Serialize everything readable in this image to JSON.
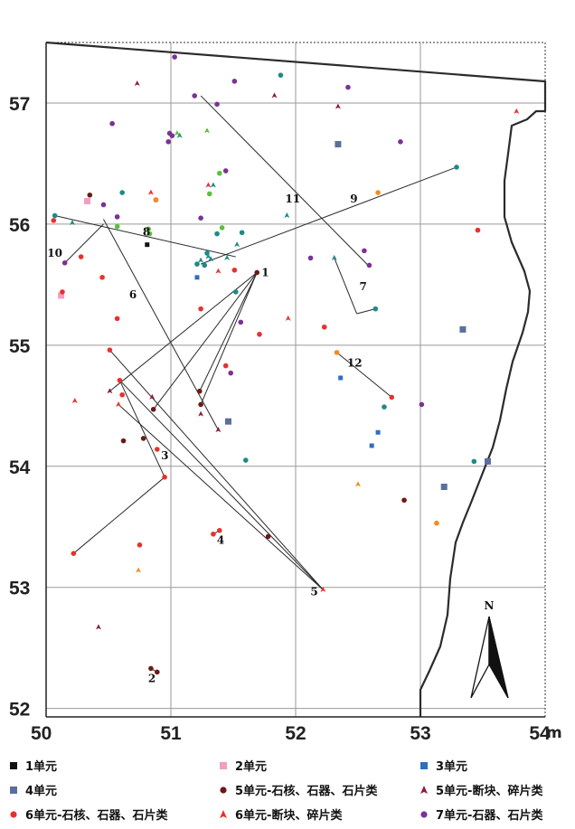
{
  "chart_data": {
    "type": "scatter",
    "x_ticks": [
      "50",
      "51",
      "52",
      "53",
      "54"
    ],
    "x_unit": "m",
    "y_ticks": [
      "52",
      "53",
      "54",
      "55",
      "56",
      "57"
    ],
    "xlim": [
      50,
      54
    ],
    "ylim": [
      51.93,
      57.5
    ],
    "grid": true,
    "north_arrow_label": "N",
    "series": [
      {
        "name": "1单元",
        "shape": "square",
        "color": "#111111",
        "small": true,
        "points": [
          [
            50.81,
            55.83
          ]
        ]
      },
      {
        "name": "2单元",
        "shape": "square",
        "color": "#f19ec2",
        "points": [
          [
            50.33,
            56.19
          ],
          [
            50.12,
            55.41
          ]
        ]
      },
      {
        "name": "3单元",
        "shape": "square",
        "color": "#2f6ebf",
        "small": true,
        "points": [
          [
            51.21,
            55.56
          ],
          [
            52.36,
            54.73
          ],
          [
            52.66,
            54.28
          ],
          [
            52.61,
            54.17
          ]
        ]
      },
      {
        "name": "4单元",
        "shape": "square",
        "color": "#5b6f9d",
        "points": [
          [
            52.34,
            56.66
          ],
          [
            53.34,
            55.13
          ],
          [
            51.46,
            54.37
          ],
          [
            53.54,
            54.04
          ],
          [
            53.19,
            53.83
          ]
        ]
      },
      {
        "name": "5单元-石核、石器、石片类",
        "shape": "circle",
        "color": "#6b1a14",
        "points": [
          [
            50.35,
            56.24
          ],
          [
            51.69,
            55.6
          ],
          [
            51.23,
            54.62
          ],
          [
            50.86,
            54.47
          ],
          [
            51.24,
            54.51
          ],
          [
            50.78,
            54.23
          ],
          [
            50.62,
            54.21
          ],
          [
            51.78,
            53.42
          ],
          [
            52.87,
            53.72
          ],
          [
            50.84,
            52.33
          ],
          [
            50.89,
            52.3
          ]
        ]
      },
      {
        "name": "5单元-断块、碎片类",
        "shape": "triangle",
        "color": "#8b1d3b",
        "points": [
          [
            50.73,
            57.16
          ],
          [
            51.83,
            57.06
          ],
          [
            52.34,
            56.97
          ],
          [
            51.38,
            54.3
          ],
          [
            50.51,
            54.62
          ],
          [
            51.24,
            54.43
          ],
          [
            50.85,
            54.57
          ],
          [
            50.42,
            52.67
          ]
        ]
      },
      {
        "name": "6单元-石核、石器、石片类",
        "shape": "circle",
        "color": "#e8312e",
        "points": [
          [
            50.06,
            56.03
          ],
          [
            50.28,
            55.73
          ],
          [
            50.45,
            55.56
          ],
          [
            50.13,
            55.44
          ],
          [
            50.57,
            55.22
          ],
          [
            50.51,
            54.96
          ],
          [
            50.59,
            54.71
          ],
          [
            50.61,
            54.59
          ],
          [
            50.89,
            54.14
          ],
          [
            50.95,
            53.91
          ],
          [
            50.22,
            53.28
          ],
          [
            50.75,
            53.35
          ],
          [
            51.39,
            53.47
          ],
          [
            51.34,
            53.44
          ],
          [
            51.44,
            54.83
          ],
          [
            51.24,
            55.3
          ],
          [
            51.71,
            55.09
          ],
          [
            52.23,
            55.15
          ],
          [
            53.46,
            55.95
          ],
          [
            51.51,
            55.62
          ],
          [
            50.88,
            56.2
          ],
          [
            52.77,
            54.57
          ]
        ]
      },
      {
        "name": "6单元-断块、碎片类",
        "shape": "triangle",
        "color": "#e8312e",
        "points": [
          [
            50.84,
            56.26
          ],
          [
            51.3,
            56.32
          ],
          [
            51.38,
            55.61
          ],
          [
            51.94,
            55.22
          ],
          [
            50.58,
            54.51
          ],
          [
            50.23,
            54.54
          ],
          [
            52.22,
            52.98
          ],
          [
            53.77,
            56.93
          ]
        ]
      },
      {
        "name": "7单元-石器、石片类",
        "shape": "circle",
        "color": "#7a3294",
        "points": [
          [
            51.03,
            57.38
          ],
          [
            51.51,
            57.18
          ],
          [
            52.42,
            57.13
          ],
          [
            50.99,
            56.75
          ],
          [
            51.01,
            56.73
          ],
          [
            50.53,
            56.83
          ],
          [
            50.98,
            56.68
          ],
          [
            52.84,
            56.68
          ],
          [
            51.37,
            56.99
          ],
          [
            51.24,
            56.05
          ],
          [
            51.56,
            55.19
          ],
          [
            51.48,
            54.77
          ],
          [
            52.55,
            55.78
          ],
          [
            52.59,
            55.66
          ],
          [
            52.12,
            55.72
          ],
          [
            53.01,
            54.51
          ],
          [
            51.44,
            56.44
          ],
          [
            50.15,
            55.68
          ],
          [
            50.46,
            56.16
          ],
          [
            50.57,
            56.06
          ],
          [
            51.19,
            57.06
          ]
        ]
      },
      {
        "name": "",
        "shape": "circle",
        "color": "#1f8a86",
        "points": [
          [
            50.07,
            56.07
          ],
          [
            50.61,
            56.26
          ],
          [
            51.88,
            57.23
          ],
          [
            53.29,
            56.47
          ],
          [
            51.57,
            55.93
          ],
          [
            51.37,
            55.92
          ],
          [
            51.29,
            55.76
          ],
          [
            51.21,
            55.67
          ],
          [
            51.27,
            55.66
          ],
          [
            51.52,
            55.44
          ],
          [
            52.64,
            55.3
          ],
          [
            52.71,
            54.49
          ],
          [
            53.43,
            54.04
          ],
          [
            51.6,
            54.05
          ]
        ]
      },
      {
        "name": "",
        "shape": "triangle",
        "color": "#1f8a86",
        "points": [
          [
            51.32,
            55.71
          ],
          [
            51.45,
            55.72
          ],
          [
            51.53,
            55.83
          ],
          [
            51.24,
            55.7
          ],
          [
            51.3,
            55.73
          ],
          [
            51.07,
            56.73
          ],
          [
            51.93,
            56.07
          ],
          [
            52.31,
            55.72
          ],
          [
            50.21,
            56.01
          ],
          [
            51.34,
            56.32
          ]
        ]
      },
      {
        "name": "",
        "shape": "circle",
        "color": "#f38b1f",
        "points": [
          [
            50.88,
            56.2
          ],
          [
            52.66,
            56.26
          ],
          [
            52.33,
            54.94
          ],
          [
            53.13,
            53.53
          ]
        ]
      },
      {
        "name": "",
        "shape": "triangle",
        "color": "#f38b1f",
        "points": [
          [
            50.74,
            53.14
          ],
          [
            52.5,
            53.85
          ]
        ]
      },
      {
        "name": "",
        "shape": "circle",
        "color": "#5cbf3c",
        "points": [
          [
            50.82,
            55.96
          ],
          [
            50.83,
            55.92
          ],
          [
            50.57,
            55.98
          ],
          [
            51.41,
            55.97
          ],
          [
            51.39,
            56.42
          ],
          [
            51.31,
            56.25
          ]
        ]
      },
      {
        "name": "",
        "shape": "triangle",
        "color": "#5cbf3c",
        "points": [
          [
            51.29,
            56.77
          ],
          [
            51.05,
            56.75
          ]
        ]
      }
    ],
    "refit_lines": [
      {
        "label": "1",
        "segments": [
          [
            [
              51.69,
              55.6
            ],
            [
              51.24,
              54.51
            ]
          ],
          [
            [
              51.69,
              55.6
            ],
            [
              50.86,
              54.47
            ]
          ],
          [
            [
              51.69,
              55.6
            ],
            [
              51.23,
              54.62
            ]
          ],
          [
            [
              51.69,
              55.6
            ],
            [
              50.51,
              54.62
            ]
          ]
        ]
      },
      {
        "label": "2",
        "segments": [
          [
            [
              50.84,
              52.33
            ],
            [
              50.89,
              52.3
            ]
          ]
        ]
      },
      {
        "label": "3",
        "segments": [
          [
            [
              50.59,
              54.71
            ],
            [
              50.95,
              53.91
            ]
          ],
          [
            [
              50.95,
              53.91
            ],
            [
              50.22,
              53.28
            ]
          ]
        ]
      },
      {
        "label": "4",
        "segments": [
          [
            [
              51.39,
              53.47
            ],
            [
              51.34,
              53.44
            ]
          ]
        ]
      },
      {
        "label": "5",
        "segments": [
          [
            [
              50.51,
              54.96
            ],
            [
              52.22,
              52.98
            ]
          ],
          [
            [
              50.59,
              54.71
            ],
            [
              52.22,
              52.98
            ]
          ],
          [
            [
              50.58,
              54.51
            ],
            [
              52.22,
              52.98
            ]
          ]
        ]
      },
      {
        "label": "6",
        "segments": [
          [
            [
              50.46,
              56.04
            ],
            [
              51.38,
              54.3
            ]
          ]
        ]
      },
      {
        "label": "7",
        "segments": [
          [
            [
              52.31,
              55.72
            ],
            [
              52.49,
              55.26
            ]
          ],
          [
            [
              52.49,
              55.26
            ],
            [
              52.64,
              55.3
            ]
          ]
        ]
      },
      {
        "label": "8",
        "segments": [
          [
            [
              50.07,
              56.07
            ],
            [
              51.52,
              55.73
            ]
          ]
        ]
      },
      {
        "label": "9",
        "segments": [
          [
            [
              51.24,
              55.67
            ],
            [
              53.29,
              56.47
            ]
          ]
        ]
      },
      {
        "label": "10",
        "segments": [
          [
            [
              50.15,
              55.68
            ],
            [
              50.46,
              56.0
            ]
          ]
        ]
      },
      {
        "label": "11",
        "segments": [
          [
            [
              51.24,
              57.06
            ],
            [
              52.59,
              55.65
            ]
          ]
        ]
      },
      {
        "label": "12",
        "segments": [
          [
            [
              52.33,
              54.94
            ],
            [
              52.77,
              54.57
            ]
          ]
        ]
      }
    ]
  },
  "legend": [
    {
      "label": "1单元",
      "shape": "square",
      "color": "#111111"
    },
    {
      "label": "2单元",
      "shape": "square",
      "color": "#f19ec2"
    },
    {
      "label": "3单元",
      "shape": "square",
      "color": "#2f6ebf"
    },
    {
      "label": "4单元",
      "shape": "square",
      "color": "#5b6f9d"
    },
    {
      "label": "5单元-石核、石器、石片类",
      "shape": "circle",
      "color": "#6b1a14"
    },
    {
      "label": "5单元-断块、碎片类",
      "shape": "triangle",
      "color": "#8b1d3b"
    },
    {
      "label": "6单元-石核、石器、石片类",
      "shape": "circle",
      "color": "#e8312e"
    },
    {
      "label": "6单元-断块、碎片类",
      "shape": "triangle",
      "color": "#e8312e"
    },
    {
      "label": "7单元-石器、石片类",
      "shape": "circle",
      "color": "#7a3294"
    }
  ]
}
